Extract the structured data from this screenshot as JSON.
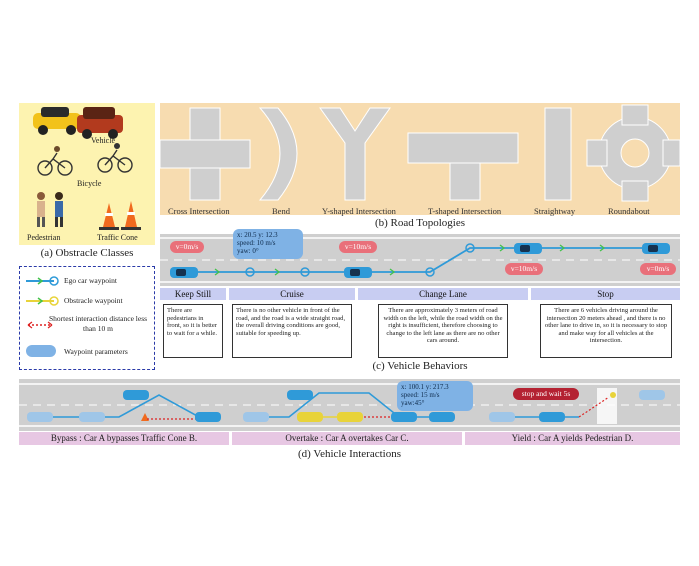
{
  "obstacles": {
    "labels": [
      "Vehicle",
      "Bicycle",
      "Pedestrian",
      "Traffic Cone"
    ],
    "caption": "(a) Obstracle Classes"
  },
  "topologies": {
    "labels": [
      "Cross Intersection",
      "Bend",
      "Y-shaped Intersection",
      "T-shaped Intersection",
      "Straightway",
      "Roundabout"
    ],
    "caption": "(b) Road Topologies"
  },
  "legend": {
    "items": [
      "Ego car waypoint",
      "Obstracle waypoint",
      "Shortest interaction distance less than 10 m",
      "Waypoint parameters"
    ]
  },
  "behaviors": {
    "headers": [
      "Keep Still",
      "Cruise",
      "Change Lane",
      "Stop"
    ],
    "descriptions": [
      "There are pedestrians in front, so it is better to wait for a while.",
      "There is no other vehicle in front of the road, and the road is a wide straight road, the overall driving conditions are good, suitable for speeding up.",
      "There are approximately 3 meters of road width on the left, while the road width on the right is insufficient, therefore choosing to change to the left lane as there are no other cars around.",
      "There are 6 vehicles driving around the intersection 20 meters ahead , and there is no other lane to drive in, so it is necessary to stop and make way for all vehicles at the intersection."
    ],
    "speed_tags": [
      "v=0m/s",
      "v=10m/s",
      "v=10m/s",
      "v=0m/s"
    ],
    "params_line1": "x: 20.5   y: 12.3",
    "params_line2": "speed: 10 m/s",
    "params_line3": "yaw: 0°",
    "caption": "(c) Vehicle Behaviors"
  },
  "interactions": {
    "labels": [
      "Bypass : Car A bypasses Traffic Cone B.",
      "Overtake : Car A overtakes Car C.",
      "Yield : Car A yields Pedestrian D."
    ],
    "params_line1": "x: 100.1   y: 217.3",
    "params_line2": "speed: 15 m/s",
    "params_line3": "yaw:45°",
    "stop_tag": "stop and wait 5s",
    "caption": "(d) Vehicle Interactions"
  },
  "colors": {
    "panel_a_bg": "#fdf3b0",
    "panel_b_bg": "#f7dcb0",
    "road": "#c9c9c9",
    "ego": "#2f9ad8",
    "obstacle": "#e8d33a",
    "header_bg": "#c8cdf2",
    "interaction_bg": "#e7c7e3",
    "tag": "#e9707a",
    "bubble": "#7fb2e5"
  }
}
